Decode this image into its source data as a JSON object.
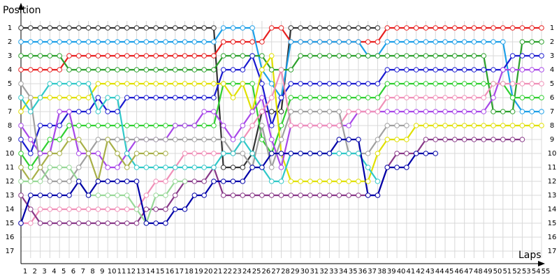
{
  "chart_data": {
    "type": "line",
    "y_label": "Position",
    "x_label": "Laps",
    "x": [
      1,
      2,
      3,
      4,
      5,
      6,
      7,
      8,
      9,
      10,
      11,
      12,
      13,
      14,
      15,
      16,
      17,
      18,
      19,
      20,
      21,
      22,
      23,
      24,
      25,
      26,
      27,
      28,
      29,
      30,
      31,
      32,
      33,
      34,
      35,
      36,
      37,
      38,
      39,
      40,
      41,
      42,
      43,
      44,
      45,
      46,
      47,
      48,
      49,
      50,
      51,
      52,
      53,
      54,
      55
    ],
    "xlim": [
      1,
      55
    ],
    "xticks": [
      1,
      2,
      3,
      4,
      5,
      6,
      7,
      8,
      9,
      10,
      11,
      12,
      13,
      14,
      15,
      16,
      17,
      18,
      19,
      20,
      21,
      22,
      23,
      24,
      25,
      26,
      27,
      28,
      29,
      30,
      31,
      32,
      33,
      34,
      35,
      36,
      37,
      38,
      39,
      40,
      41,
      42,
      43,
      44,
      45,
      46,
      47,
      48,
      49,
      50,
      51,
      52,
      53,
      54,
      55
    ],
    "ylim": [
      0,
      18
    ],
    "y_inverted": true,
    "yticks": [
      1,
      2,
      3,
      4,
      5,
      6,
      7,
      8,
      9,
      10,
      11,
      12,
      13,
      14,
      15,
      16,
      17
    ],
    "grid": true,
    "series": [
      {
        "color": "#333333",
        "values": [
          1,
          1,
          1,
          1,
          1,
          1,
          1,
          1,
          1,
          1,
          1,
          1,
          1,
          1,
          1,
          1,
          1,
          1,
          1,
          1,
          1,
          11,
          11,
          11,
          10,
          7,
          7,
          7,
          1,
          1,
          1,
          1,
          1,
          1,
          1,
          1,
          1,
          1,
          null,
          null,
          null,
          null,
          null,
          null,
          null,
          null,
          null,
          null,
          null,
          null,
          null,
          null,
          null,
          null,
          null
        ]
      },
      {
        "color": "#e82020",
        "values": [
          4,
          4,
          4,
          4,
          4,
          3,
          3,
          3,
          3,
          3,
          3,
          3,
          3,
          3,
          3,
          3,
          3,
          3,
          3,
          3,
          3,
          2,
          2,
          2,
          2,
          2,
          1,
          1,
          2,
          2,
          2,
          2,
          2,
          2,
          2,
          2,
          2,
          2,
          1,
          1,
          1,
          1,
          1,
          1,
          1,
          1,
          1,
          1,
          1,
          1,
          1,
          1,
          1,
          1,
          1
        ]
      },
      {
        "color": "#1ea0e8",
        "values": [
          2,
          2,
          2,
          2,
          2,
          2,
          2,
          2,
          2,
          2,
          2,
          2,
          2,
          2,
          2,
          2,
          2,
          2,
          2,
          2,
          2,
          1,
          1,
          1,
          1,
          4,
          5,
          6,
          2,
          2,
          2,
          2,
          2,
          2,
          2,
          2,
          3,
          3,
          2,
          2,
          2,
          2,
          2,
          2,
          2,
          2,
          2,
          2,
          2,
          2,
          2,
          6,
          7,
          7,
          7
        ]
      },
      {
        "color": "#2ca02c",
        "values": [
          3,
          3,
          3,
          3,
          3,
          4,
          4,
          4,
          4,
          4,
          4,
          4,
          4,
          4,
          4,
          4,
          4,
          4,
          4,
          4,
          4,
          3,
          3,
          3,
          3,
          3,
          4,
          4,
          4,
          3,
          3,
          3,
          3,
          3,
          3,
          3,
          3,
          3,
          3,
          3,
          3,
          3,
          3,
          3,
          3,
          3,
          3,
          3,
          3,
          7,
          7,
          7,
          2,
          2,
          2
        ]
      },
      {
        "color": "#1a1ad0",
        "values": [
          9,
          10,
          8,
          8,
          8,
          7,
          7,
          7,
          6,
          7,
          7,
          6,
          6,
          6,
          6,
          6,
          6,
          6,
          6,
          6,
          6,
          4,
          4,
          4,
          3,
          5,
          8,
          6,
          5,
          5,
          5,
          5,
          5,
          5,
          5,
          5,
          5,
          5,
          4,
          4,
          4,
          4,
          4,
          4,
          4,
          4,
          4,
          4,
          4,
          4,
          4,
          3,
          3,
          3,
          3
        ]
      },
      {
        "color": "#30d030",
        "values": [
          10,
          11,
          10,
          9,
          9,
          8,
          8,
          8,
          8,
          8,
          8,
          8,
          8,
          8,
          8,
          8,
          8,
          8,
          8,
          8,
          8,
          5,
          5,
          5,
          5,
          9,
          10,
          8,
          6,
          6,
          6,
          6,
          6,
          6,
          6,
          6,
          6,
          6,
          5,
          5,
          5,
          5,
          5,
          5,
          5,
          5,
          5,
          5,
          5,
          5,
          5,
          6,
          6,
          6,
          6
        ]
      },
      {
        "color": "#e0e000",
        "values": [
          7,
          6,
          6,
          6,
          6,
          6,
          6,
          6,
          5,
          5,
          5,
          5,
          5,
          5,
          5,
          5,
          5,
          5,
          5,
          5,
          5,
          5,
          6,
          5,
          7,
          4,
          3,
          10,
          12,
          12,
          12,
          12,
          12,
          12,
          12,
          12,
          12,
          10,
          9,
          9,
          9,
          8,
          8,
          8,
          8,
          8,
          8,
          8,
          8,
          8,
          8,
          8,
          8,
          8,
          8
        ]
      },
      {
        "color": "#a848e8",
        "values": [
          8,
          9,
          10,
          10,
          7,
          7,
          10,
          10,
          10,
          11,
          11,
          10,
          9,
          9,
          9,
          9,
          8,
          8,
          8,
          7,
          7,
          8,
          9,
          8,
          7,
          6,
          9,
          11,
          8,
          8,
          8,
          8,
          8,
          8,
          8,
          7,
          7,
          7,
          7,
          7,
          7,
          7,
          7,
          7,
          7,
          7,
          7,
          7,
          7,
          6,
          4,
          4,
          4,
          4,
          4
        ]
      },
      {
        "color": "#f090b8",
        "values": [
          15,
          15,
          14,
          14,
          14,
          14,
          14,
          14,
          14,
          14,
          14,
          14,
          14,
          13,
          12,
          12,
          11,
          10,
          10,
          10,
          10,
          10,
          10,
          9,
          8,
          7,
          6,
          4,
          8,
          8,
          8,
          8,
          8,
          8,
          7,
          7,
          7,
          7,
          6,
          6,
          6,
          6,
          6,
          6,
          6,
          6,
          6,
          6,
          6,
          5,
          5,
          5,
          5,
          5,
          5
        ]
      },
      {
        "color": "#a0a0a0",
        "values": [
          5,
          6,
          11,
          12,
          12,
          12,
          11,
          10,
          9,
          9,
          9,
          9,
          9,
          9,
          9,
          9,
          9,
          9,
          9,
          9,
          9,
          9,
          10,
          10,
          11,
          8,
          11,
          9,
          7,
          7,
          7,
          7,
          7,
          7,
          10,
          10,
          10,
          9,
          8,
          8,
          8,
          null,
          null,
          null,
          null,
          null,
          null,
          null,
          null,
          null,
          null,
          null,
          null,
          null,
          null
        ]
      },
      {
        "color": "#883888",
        "values": [
          13,
          14,
          15,
          15,
          15,
          15,
          15,
          15,
          15,
          15,
          15,
          15,
          15,
          14,
          14,
          14,
          13,
          12,
          12,
          12,
          11,
          13,
          13,
          13,
          13,
          13,
          13,
          13,
          13,
          13,
          13,
          13,
          13,
          13,
          13,
          13,
          13,
          13,
          11,
          10,
          10,
          10,
          9,
          9,
          9,
          9,
          9,
          9,
          9,
          9,
          9,
          9,
          9,
          null,
          null
        ]
      },
      {
        "color": "#30c8c8",
        "values": [
          6,
          7,
          6,
          5,
          5,
          5,
          5,
          5,
          7,
          6,
          6,
          10,
          11,
          11,
          11,
          11,
          11,
          11,
          11,
          11,
          11,
          10,
          10,
          9,
          10,
          11,
          12,
          12,
          10,
          10,
          10,
          10,
          10,
          10,
          10,
          10,
          11,
          12,
          null,
          null,
          null,
          null,
          null,
          null,
          null,
          null,
          null,
          null,
          null,
          null,
          null,
          null,
          null,
          null,
          null
        ]
      },
      {
        "color": "#a8b048",
        "values": [
          11,
          12,
          11,
          10,
          10,
          9,
          9,
          10,
          12,
          9,
          10,
          11,
          10,
          10,
          10,
          10,
          null,
          null,
          null,
          null,
          null,
          null,
          null,
          null,
          null,
          null,
          null,
          null,
          null,
          null,
          null,
          null,
          null,
          null,
          null,
          null,
          null,
          null,
          null,
          null,
          null,
          null,
          null,
          null,
          null,
          null,
          null,
          null,
          null,
          null,
          null,
          null,
          null,
          null,
          null
        ]
      },
      {
        "color": "#98d898",
        "values": [
          12,
          12,
          12,
          11,
          11,
          11,
          12,
          13,
          13,
          13,
          13,
          13,
          14,
          15,
          13,
          13,
          12,
          12,
          null,
          null,
          null,
          null,
          null,
          null,
          null,
          null,
          null,
          null,
          null,
          null,
          null,
          null,
          null,
          null,
          null,
          null,
          null,
          null,
          null,
          null,
          null,
          null,
          null,
          null,
          null,
          null,
          null,
          null,
          null,
          null,
          null,
          null,
          null,
          null,
          null
        ]
      },
      {
        "color": "#0000a8",
        "values": [
          15,
          13,
          13,
          13,
          13,
          13,
          12,
          13,
          12,
          12,
          12,
          12,
          12,
          15,
          15,
          15,
          14,
          14,
          13,
          13,
          12,
          12,
          12,
          12,
          11,
          11,
          10,
          10,
          10,
          10,
          10,
          10,
          10,
          9,
          9,
          9,
          13,
          13,
          11,
          11,
          11,
          10,
          10,
          10,
          null,
          null,
          null,
          null,
          null,
          null,
          null,
          null,
          null,
          null,
          null
        ]
      }
    ]
  }
}
